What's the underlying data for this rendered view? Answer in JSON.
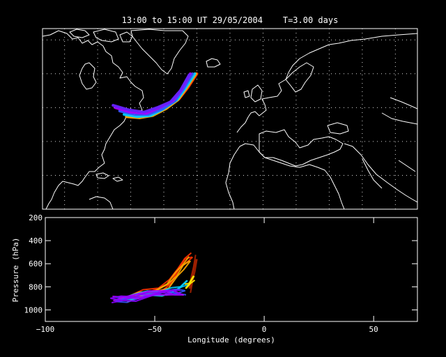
{
  "title": "13:00 to 15:00 UT 29/05/2004    T=3.00 days",
  "chart_data": {
    "type": "line",
    "map_panel": {
      "projection": "cylindrical",
      "lon_range": [
        -100,
        70
      ],
      "lat_range": [
        0,
        80
      ],
      "grid": true,
      "trajectories": [
        {
          "color": "#ff3300",
          "points": [
            [
              -30,
              60
            ],
            [
              -34,
              54
            ],
            [
              -38,
              49
            ],
            [
              -44,
              45
            ],
            [
              -50,
              42
            ],
            [
              -56,
              41
            ],
            [
              -61,
              41
            ]
          ]
        },
        {
          "color": "#ffaa00",
          "points": [
            [
              -30.5,
              60
            ],
            [
              -34.5,
              54
            ],
            [
              -38.5,
              48.5
            ],
            [
              -44,
              44.5
            ],
            [
              -50,
              41.5
            ],
            [
              -56,
              40.5
            ],
            [
              -62,
              41
            ]
          ]
        },
        {
          "color": "#00ccff",
          "points": [
            [
              -31,
              60
            ],
            [
              -35,
              54
            ],
            [
              -39,
              48.5
            ],
            [
              -45,
              44.5
            ],
            [
              -51,
              41.5
            ],
            [
              -57,
              41
            ],
            [
              -63,
              42
            ]
          ]
        },
        {
          "color": "#3355ff",
          "points": [
            [
              -32,
              60
            ],
            [
              -36,
              53.5
            ],
            [
              -40,
              48
            ],
            [
              -45.5,
              44.5
            ],
            [
              -52,
              42
            ],
            [
              -58,
              42
            ],
            [
              -65,
              43.5
            ]
          ]
        },
        {
          "color": "#aa00ff",
          "points": [
            [
              -33,
              60
            ],
            [
              -37,
              53
            ],
            [
              -41,
              48
            ],
            [
              -47,
              45
            ],
            [
              -53,
              42.5
            ],
            [
              -60,
              43
            ],
            [
              -67,
              45
            ]
          ]
        },
        {
          "color": "#6622ff",
          "points": [
            [
              -33.5,
              59.5
            ],
            [
              -37.5,
              52.5
            ],
            [
              -42,
              47.5
            ],
            [
              -48,
              45
            ],
            [
              -54,
              43
            ],
            [
              -61,
              44
            ],
            [
              -68,
              46
            ]
          ]
        }
      ]
    },
    "profile_panel": {
      "xlabel": "Longitude  (degrees)",
      "ylabel": "Pressure  (hPa)",
      "xlim": [
        -100,
        70
      ],
      "ylim": [
        1100,
        200
      ],
      "xticks": [
        -100,
        -50,
        0,
        50
      ],
      "yticks": [
        200,
        400,
        600,
        800,
        1000
      ],
      "trajectories": [
        {
          "color": "#ff3300",
          "points": [
            [
              -33,
              535
            ],
            [
              -36,
              570
            ],
            [
              -39,
              640
            ],
            [
              -43,
              760
            ],
            [
              -48,
              820
            ],
            [
              -55,
              855
            ],
            [
              -62,
              900
            ]
          ]
        },
        {
          "color": "#ffaa00",
          "points": [
            [
              -34,
              560
            ],
            [
              -37,
              620
            ],
            [
              -40,
              700
            ],
            [
              -44,
              790
            ],
            [
              -50,
              840
            ],
            [
              -57,
              870
            ],
            [
              -63,
              905
            ]
          ]
        },
        {
          "color": "#00ccff",
          "points": [
            [
              -35,
              760
            ],
            [
              -38,
              800
            ],
            [
              -42,
              830
            ],
            [
              -47,
              850
            ],
            [
              -53,
              865
            ],
            [
              -60,
              885
            ],
            [
              -66,
              910
            ]
          ]
        },
        {
          "color": "#3355ff",
          "points": [
            [
              -36,
              840
            ],
            [
              -40,
              850
            ],
            [
              -45,
              850
            ],
            [
              -51,
              860
            ],
            [
              -57,
              880
            ],
            [
              -63,
              905
            ],
            [
              -68,
              920
            ]
          ]
        },
        {
          "color": "#aa00ff",
          "points": [
            [
              -37,
              870
            ],
            [
              -41,
              855
            ],
            [
              -46,
              840
            ],
            [
              -52,
              865
            ],
            [
              -58,
              880
            ],
            [
              -64,
              890
            ],
            [
              -69,
              905
            ]
          ]
        },
        {
          "color": "#8800ff",
          "points": [
            [
              -38,
              860
            ],
            [
              -42,
              845
            ],
            [
              -47,
              850
            ],
            [
              -53,
              870
            ],
            [
              -59,
              895
            ],
            [
              -65,
              910
            ],
            [
              -70,
              915
            ]
          ]
        },
        {
          "color": "#aa2200",
          "points": [
            [
              -31,
              545
            ],
            [
              -32,
              640
            ],
            [
              -33,
              740
            ],
            [
              -34,
              830
            ]
          ]
        },
        {
          "color": "#ffee00",
          "points": [
            [
              -32,
              720
            ],
            [
              -34,
              770
            ],
            [
              -36,
              800
            ]
          ]
        }
      ]
    }
  }
}
